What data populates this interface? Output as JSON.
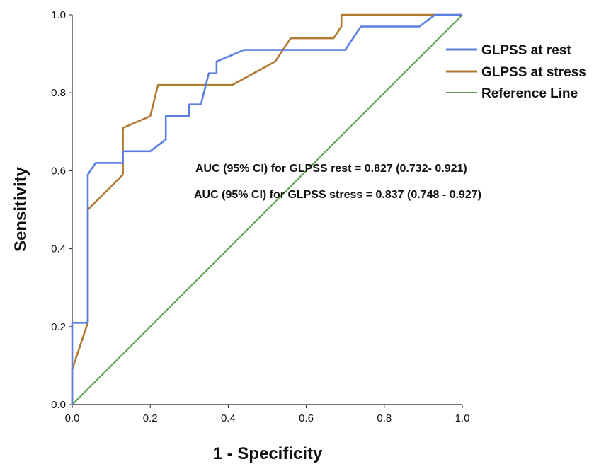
{
  "chart_data": {
    "type": "line",
    "xlabel": "1 - Specificity",
    "ylabel": "Sensitivity",
    "xlim": [
      0,
      1
    ],
    "ylim": [
      0,
      1
    ],
    "x_ticks": [
      "0.0",
      "0.2",
      "0.4",
      "0.6",
      "0.8",
      "1.0"
    ],
    "y_ticks": [
      "0.0",
      "0.2",
      "0.4",
      "0.6",
      "0.8",
      "1.0"
    ],
    "grid": false,
    "legend_position": "top-right",
    "series": [
      {
        "name": "GLPSS at rest",
        "color": "#5b7fe0",
        "points": [
          [
            0,
            0
          ],
          [
            0,
            0.21
          ],
          [
            0.04,
            0.21
          ],
          [
            0.04,
            0.59
          ],
          [
            0.06,
            0.62
          ],
          [
            0.13,
            0.62
          ],
          [
            0.13,
            0.65
          ],
          [
            0.2,
            0.65
          ],
          [
            0.24,
            0.68
          ],
          [
            0.24,
            0.74
          ],
          [
            0.3,
            0.74
          ],
          [
            0.3,
            0.77
          ],
          [
            0.33,
            0.77
          ],
          [
            0.35,
            0.85
          ],
          [
            0.37,
            0.85
          ],
          [
            0.37,
            0.88
          ],
          [
            0.44,
            0.91
          ],
          [
            0.7,
            0.91
          ],
          [
            0.74,
            0.97
          ],
          [
            0.89,
            0.97
          ],
          [
            0.93,
            1.0
          ],
          [
            1,
            1
          ]
        ]
      },
      {
        "name": "GLPSS at stress",
        "color": "#b07a32",
        "points": [
          [
            0,
            0
          ],
          [
            0,
            0.09
          ],
          [
            0.04,
            0.21
          ],
          [
            0.04,
            0.5
          ],
          [
            0.13,
            0.59
          ],
          [
            0.13,
            0.71
          ],
          [
            0.2,
            0.74
          ],
          [
            0.22,
            0.82
          ],
          [
            0.41,
            0.82
          ],
          [
            0.52,
            0.88
          ],
          [
            0.56,
            0.94
          ],
          [
            0.67,
            0.94
          ],
          [
            0.69,
            0.97
          ],
          [
            0.69,
            1.0
          ],
          [
            1,
            1
          ]
        ]
      },
      {
        "name": "Reference Line",
        "color": "#5a9e4b",
        "points": [
          [
            0,
            0
          ],
          [
            1,
            1
          ]
        ]
      }
    ],
    "annotations": [
      "AUC (95% CI) for GLPSS rest = 0.827 (0.732- 0.921)",
      "AUC (95% CI) for GLPSS stress = 0.837 (0.748 - 0.927)"
    ]
  }
}
